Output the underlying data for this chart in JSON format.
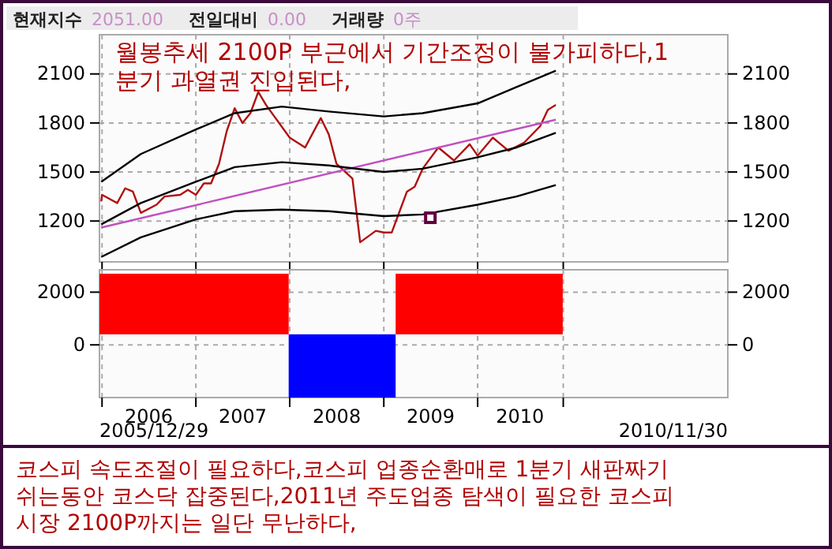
{
  "chart_data": [
    {
      "type": "line",
      "title": "월봉추세 2100P 부근에서 기간조정이 불가피하다,1\n분기 과열권 진입된다,",
      "annotations": [
        "현재지수",
        "2051.00",
        "전일대비",
        "0.00",
        "거래량",
        "0주"
      ],
      "xlim": [
        "2005-12-22",
        "2012-08-31"
      ],
      "xticks": [
        {
          "value": "2006-01-01",
          "label": null
        },
        {
          "value": "2007-01-01",
          "label": null
        },
        {
          "value": "2008-01-01",
          "label": null
        },
        {
          "value": "2009-01-01",
          "label": null
        },
        {
          "value": "2010-01-01",
          "label": null
        },
        {
          "value": "2010-11-30",
          "label": null
        }
      ],
      "ylim": [
        950,
        2340
      ],
      "yticks": [
        1200,
        1500,
        1800,
        2100
      ],
      "y2lim": [
        950,
        2340
      ],
      "y2ticks": [
        1200,
        1500,
        1800,
        2100
      ],
      "tick_labels": "y",
      "grid": true,
      "series": [
        {
          "color": "#b01010",
          "x": [
            "2005-12-29",
            "2006-01",
            "2006-03",
            "2006-04",
            "2006-05",
            "2006-06",
            "2006-08",
            "2006-09",
            "2006-11",
            "2006-12",
            "2007-01",
            "2007-02",
            "2007-03",
            "2007-04",
            "2007-05",
            "2007-06",
            "2007-07",
            "2007-08",
            "2007-09",
            "2007-10",
            "2008-01",
            "2008-03",
            "2008-05",
            "2008-06",
            "2008-07",
            "2008-09",
            "2008-10",
            "2008-12",
            "2009-01",
            "2009-02",
            "2009-04",
            "2009-05",
            "2009-06",
            "2009-08",
            "2009-10",
            "2009-12",
            "2010-01",
            "2010-03",
            "2010-05",
            "2010-07",
            "2010-09",
            "2010-10",
            "2010-11"
          ],
          "values": [
            1320,
            1360,
            1310,
            1400,
            1380,
            1250,
            1300,
            1350,
            1360,
            1390,
            1360,
            1430,
            1430,
            1550,
            1750,
            1890,
            1800,
            1860,
            1990,
            1910,
            1710,
            1650,
            1830,
            1730,
            1550,
            1460,
            1070,
            1140,
            1130,
            1130,
            1380,
            1410,
            1520,
            1650,
            1570,
            1670,
            1600,
            1710,
            1630,
            1680,
            1780,
            1880,
            1910
          ]
        },
        {
          "color": "#c050c0",
          "x": [
            "2005-12-29",
            "2010-11"
          ],
          "values": [
            1160,
            1820
          ]
        },
        {
          "color": "#000000",
          "x": [
            "2005-12-29",
            "2006-06",
            "2007-01",
            "2007-06",
            "2007-12",
            "2008-06",
            "2009-01",
            "2009-06",
            "2010-01",
            "2010-06",
            "2010-11"
          ],
          "values": [
            1440,
            1610,
            1760,
            1860,
            1900,
            1870,
            1840,
            1860,
            1920,
            2020,
            2120
          ]
        },
        {
          "color": "#000000",
          "x": [
            "2005-12-29",
            "2006-06",
            "2007-01",
            "2007-06",
            "2007-12",
            "2008-06",
            "2009-01",
            "2009-06",
            "2010-01",
            "2010-06",
            "2010-11"
          ],
          "values": [
            1180,
            1310,
            1440,
            1530,
            1560,
            1540,
            1500,
            1520,
            1590,
            1650,
            1740
          ]
        },
        {
          "color": "#000000",
          "x": [
            "2005-12-29",
            "2006-06",
            "2007-01",
            "2007-06",
            "2007-12",
            "2008-06",
            "2009-01",
            "2009-06",
            "2010-01",
            "2010-06",
            "2010-11"
          ],
          "values": [
            980,
            1100,
            1210,
            1260,
            1270,
            1260,
            1230,
            1240,
            1300,
            1350,
            1420
          ]
        },
        {
          "type": "scatter",
          "marker": "square",
          "color": "#600040",
          "x": [
            "2009-07"
          ],
          "values": [
            1220
          ]
        }
      ]
    },
    {
      "type": "bar",
      "annotations": [
        "2005/12/29",
        "2010/11/30",
        "코스피 속도조절이 필요하다,코스피 업종순환매로 1분기 새판짜기\n쉬는동안 코스닥 잡중된다,2011년 주도업종 탐색이 필요한 코스피\n시장 2100P까지는 일단 무난하다,"
      ],
      "x": [
        "2006-12-25",
        "2008-07-23",
        "2010-01-07"
      ],
      "values": [
        2300,
        -2400,
        2300
      ],
      "base": [
        400,
        400,
        400
      ],
      "colors": [
        "#ff0000",
        "#0000ff",
        "#ff0000"
      ],
      "xlim": [
        "2005-12-22",
        "2012-08-31"
      ],
      "xticks": [
        {
          "value": "2006-01-01",
          "label": null
        },
        {
          "value": "2006-07-02",
          "label": "2006"
        },
        {
          "value": "2007-01-01",
          "label": null
        },
        {
          "value": "2007-07-02",
          "label": "2007"
        },
        {
          "value": "2008-01-01",
          "label": null
        },
        {
          "value": "2008-07-02",
          "label": "2008"
        },
        {
          "value": "2009-01-01",
          "label": null
        },
        {
          "value": "2009-07-02",
          "label": "2009"
        },
        {
          "value": "2010-01-01",
          "label": null
        },
        {
          "value": "2010-06-15",
          "label": "2010"
        },
        {
          "value": "2010-11-30",
          "label": null
        }
      ],
      "ylim": [
        -2000,
        2850
      ],
      "yticks": [
        0,
        2000
      ],
      "y2lim": [
        -2000,
        2850
      ],
      "y2ticks": [
        0,
        2000
      ],
      "grid": true
    }
  ]
}
